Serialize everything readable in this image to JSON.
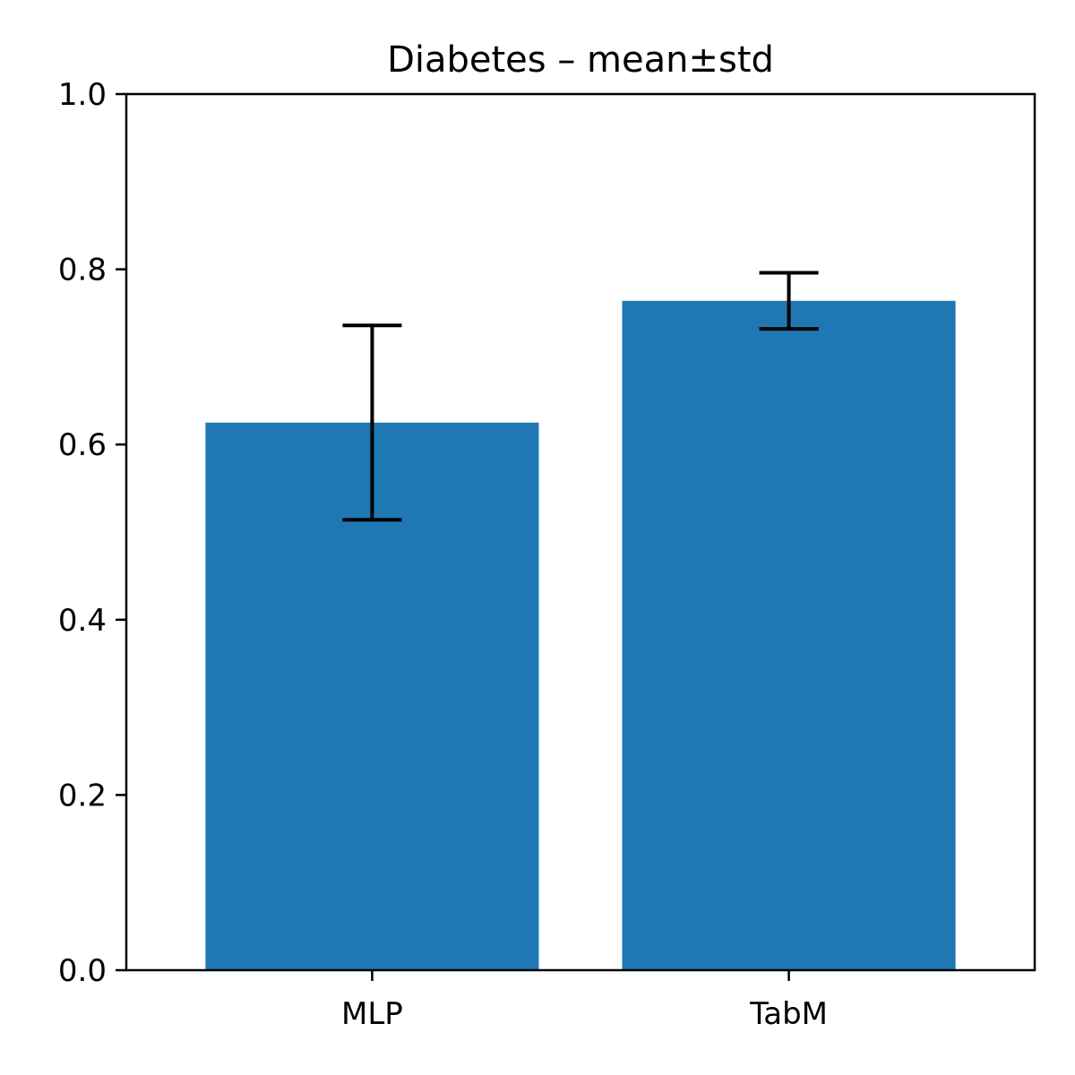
{
  "chart_data": {
    "type": "bar",
    "title": "Diabetes – mean±std",
    "xlabel": "",
    "ylabel": "",
    "categories": [
      "MLP",
      "TabM"
    ],
    "values": [
      0.625,
      0.764
    ],
    "errors": [
      0.111,
      0.032
    ],
    "ylim": [
      0,
      1.0
    ],
    "yticks": [
      0.0,
      0.2,
      0.4,
      0.6,
      0.8,
      1.0
    ],
    "ytick_labels": [
      "0.0",
      "0.2",
      "0.4",
      "0.6",
      "0.8",
      "1.0"
    ],
    "grid": false,
    "bar_color": "#1f77b4",
    "error_color": "#000000"
  }
}
